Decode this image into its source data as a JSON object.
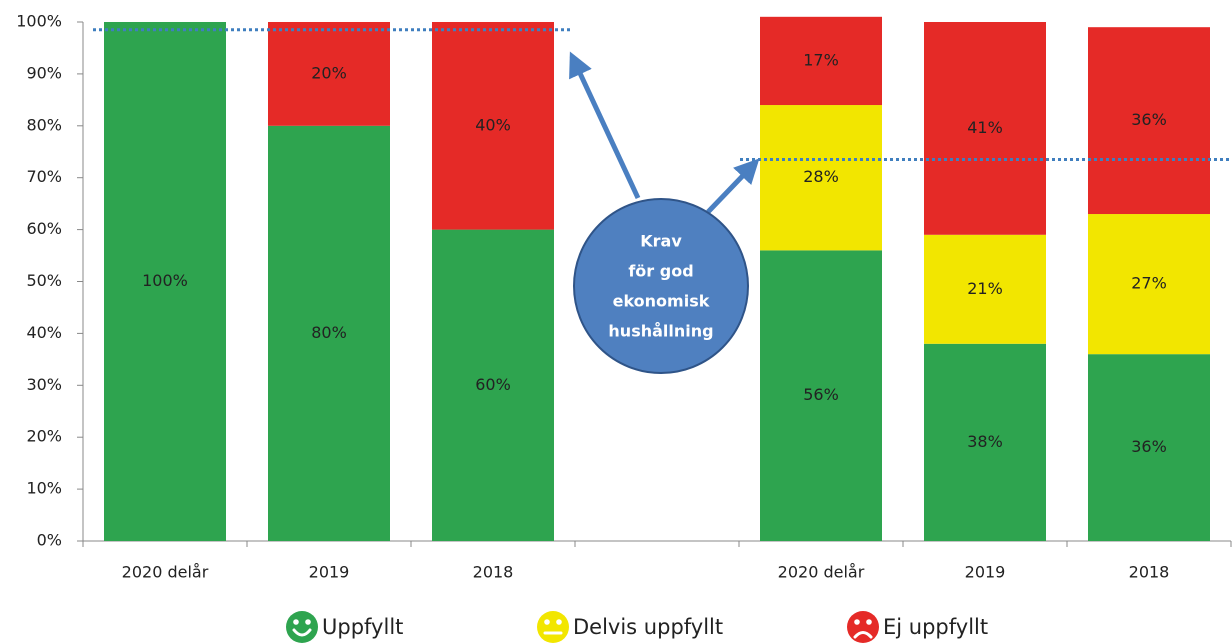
{
  "chart_data": {
    "type": "stacked_bar",
    "categories": [
      "2020 delår",
      "2019",
      "2018",
      null,
      "2020 delår",
      "2019",
      "2018"
    ],
    "series": [
      {
        "name": "Uppfyllt",
        "color": "#2ea44f",
        "values": [
          100,
          80,
          60,
          null,
          56,
          38,
          36
        ],
        "value_labels": [
          "100%",
          "80%",
          "60%",
          null,
          "56%",
          "38%",
          "36%"
        ]
      },
      {
        "name": "Delvis uppfyllt",
        "color": "#f2e600",
        "values": [
          null,
          null,
          null,
          null,
          28,
          21,
          27
        ],
        "value_labels": [
          null,
          null,
          null,
          null,
          "28%",
          "21%",
          "27%"
        ]
      },
      {
        "name": "Ej uppfyllt",
        "color": "#e52a27",
        "values": [
          null,
          20,
          40,
          null,
          17,
          41,
          36
        ],
        "value_labels": [
          null,
          "20%",
          "40%",
          null,
          "17%",
          "41%",
          "36%"
        ]
      }
    ],
    "ylim": [
      0,
      100
    ],
    "yticks": [
      {
        "value": 0,
        "label": "0%"
      },
      {
        "value": 10,
        "label": "10%"
      },
      {
        "value": 20,
        "label": "20%"
      },
      {
        "value": 30,
        "label": "30%"
      },
      {
        "value": 40,
        "label": "40%"
      },
      {
        "value": 50,
        "label": "50%"
      },
      {
        "value": 60,
        "label": "60%"
      },
      {
        "value": 70,
        "label": "70%"
      },
      {
        "value": 80,
        "label": "80%"
      },
      {
        "value": 90,
        "label": "90%"
      },
      {
        "value": 100,
        "label": "100%"
      }
    ],
    "reference_lines": [
      {
        "value": 98.5
      },
      {
        "value": 73.5
      }
    ],
    "annotation": [
      "Krav",
      "för god",
      "ekonomisk",
      "hushållning"
    ]
  }
}
